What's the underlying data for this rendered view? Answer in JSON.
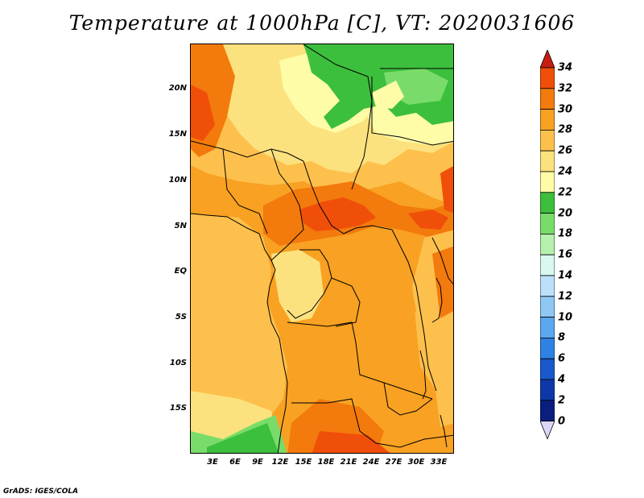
{
  "title": "Temperature at 1000hPa [C], VT: 2020031606",
  "footer": "GrADS: IGES/COLA",
  "y_axis_labels": [
    "20N",
    "15N",
    "10N",
    "5N",
    "EQ",
    "5S",
    "10S",
    "15S"
  ],
  "x_axis_labels": [
    "3E",
    "6E",
    "9E",
    "12E",
    "15E",
    "18E",
    "21E",
    "24E",
    "27E",
    "30E",
    "33E"
  ],
  "colorbar": {
    "labels": [
      "34",
      "32",
      "30",
      "28",
      "26",
      "24",
      "22",
      "20",
      "18",
      "16",
      "14",
      "12",
      "10",
      "8",
      "6",
      "4",
      "2",
      "0"
    ],
    "levels": [
      {
        "color": "#d73018"
      },
      {
        "color": "#f04f0a"
      },
      {
        "color": "#f37a0c"
      },
      {
        "color": "#f8a122"
      },
      {
        "color": "#fdc04c"
      },
      {
        "color": "#fce27e"
      },
      {
        "color": "#fffca8"
      },
      {
        "color": "#3cbf3c"
      },
      {
        "color": "#79dc6a"
      },
      {
        "color": "#b6f0ae"
      },
      {
        "color": "#d8f8f0"
      },
      {
        "color": "#bce0fa"
      },
      {
        "color": "#90c8f4"
      },
      {
        "color": "#5aa8ee"
      },
      {
        "color": "#2e82e4"
      },
      {
        "color": "#1a58cc"
      },
      {
        "color": "#0e38aa"
      },
      {
        "color": "#0a1e80"
      }
    ],
    "top_arrow_color": "#c81e12",
    "bottom_arrow_color": "#dcd6f6"
  }
}
